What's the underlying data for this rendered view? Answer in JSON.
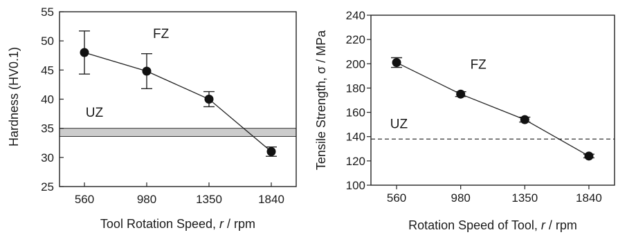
{
  "chart_data": [
    {
      "type": "line",
      "title": "",
      "xlabel_parts": [
        "Tool Rotation Speed, ",
        "r",
        " / rpm"
      ],
      "ylabel": "Hardness  (HV0.1)",
      "categories": [
        "560",
        "980",
        "1350",
        "1840"
      ],
      "series": [
        {
          "name": "",
          "values": [
            48,
            44.8,
            40,
            31
          ],
          "errors": [
            3.7,
            3,
            1.3,
            0.8
          ]
        }
      ],
      "ylim": [
        25,
        55
      ],
      "yticks": [
        "25",
        "30",
        "35",
        "40",
        "45",
        "50",
        "55"
      ],
      "annotations": [
        {
          "text": "FZ",
          "x": 1.1,
          "y": 50.5
        },
        {
          "text": "UZ",
          "x": 0.02,
          "y": 37
        }
      ],
      "band": {
        "from": 33.6,
        "to": 35,
        "label": "UZ",
        "color": "#cccccc"
      },
      "grid": false,
      "legend": "none"
    },
    {
      "type": "line",
      "title": "",
      "xlabel_parts": [
        "Rotation  Speed  of  Tool,  ",
        "r",
        " / rpm"
      ],
      "ylabel": "Tensile  Strength,  σ / MPa",
      "categories": [
        "560",
        "980",
        "1350",
        "1840"
      ],
      "series": [
        {
          "name": "",
          "values": [
            201,
            175,
            154,
            124
          ],
          "errors": [
            4,
            2,
            2,
            1.5
          ]
        }
      ],
      "ylim": [
        100,
        240
      ],
      "yticks": [
        "100",
        "120",
        "140",
        "160",
        "180",
        "200",
        "220",
        "240"
      ],
      "annotations": [
        {
          "text": "FZ",
          "x": 1.15,
          "y": 196
        },
        {
          "text": "UZ",
          "x": -0.1,
          "y": 147
        }
      ],
      "reference_line": {
        "value": 138,
        "style": "dashed"
      },
      "grid": false,
      "legend": "none"
    }
  ]
}
